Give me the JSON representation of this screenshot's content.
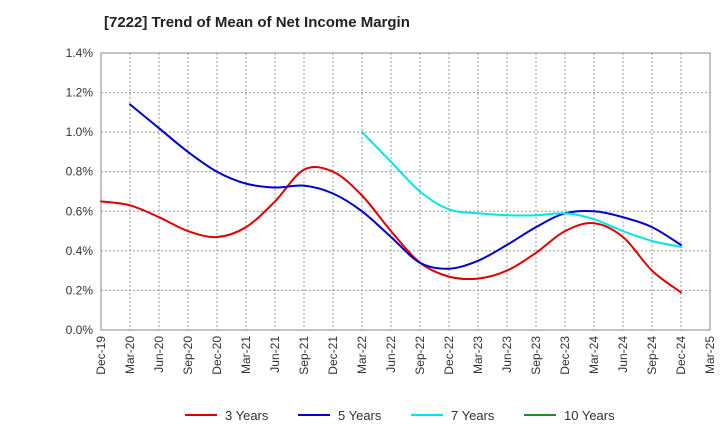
{
  "chart_data": {
    "type": "line",
    "title": "[7222]  Trend of Mean of Net Income Margin",
    "xlabel": "",
    "ylabel": "",
    "ylim": [
      0,
      0.014
    ],
    "y_ticks": [
      0,
      0.002,
      0.004,
      0.006,
      0.008,
      0.01,
      0.012,
      0.014
    ],
    "y_tick_labels": [
      "0.0%",
      "0.2%",
      "0.4%",
      "0.6%",
      "0.8%",
      "1.0%",
      "1.2%",
      "1.4%"
    ],
    "x_tick_labels": [
      "Dec-19",
      "Mar-20",
      "Jun-20",
      "Sep-20",
      "Dec-20",
      "Mar-21",
      "Jun-21",
      "Sep-21",
      "Dec-21",
      "Mar-22",
      "Jun-22",
      "Sep-22",
      "Dec-22",
      "Mar-23",
      "Jun-23",
      "Sep-23",
      "Dec-23",
      "Mar-24",
      "Jun-24",
      "Sep-24",
      "Dec-24",
      "Mar-25"
    ],
    "grid": true,
    "legend_position": "bottom",
    "series": [
      {
        "name": "3 Years",
        "color": "#dd0000",
        "values": [
          0.0065,
          0.0063,
          0.0057,
          0.005,
          0.0047,
          0.0052,
          0.0065,
          0.0081,
          0.008,
          0.0068,
          0.005,
          0.0034,
          0.0027,
          0.0026,
          0.003,
          0.0039,
          0.005,
          0.0054,
          0.0047,
          0.003,
          0.0019,
          null
        ]
      },
      {
        "name": "5 Years",
        "color": "#0000cc",
        "values": [
          null,
          0.0114,
          0.0102,
          0.009,
          0.008,
          0.0074,
          0.0072,
          0.0073,
          0.0069,
          0.006,
          0.0047,
          0.0034,
          0.0031,
          0.0035,
          0.0043,
          0.0052,
          0.0059,
          0.006,
          0.0057,
          0.0052,
          0.0043,
          null
        ]
      },
      {
        "name": "7 Years",
        "color": "#00e5e5",
        "values": [
          null,
          null,
          null,
          null,
          null,
          null,
          null,
          null,
          null,
          0.01,
          0.0085,
          0.007,
          0.0061,
          0.0059,
          0.0058,
          0.0058,
          0.0059,
          0.0056,
          0.005,
          0.0045,
          0.0042,
          null
        ]
      },
      {
        "name": "10 Years",
        "color": "#228b22",
        "values": [
          null,
          null,
          null,
          null,
          null,
          null,
          null,
          null,
          null,
          null,
          null,
          null,
          null,
          null,
          null,
          null,
          null,
          null,
          null,
          null,
          null,
          null
        ]
      }
    ]
  }
}
